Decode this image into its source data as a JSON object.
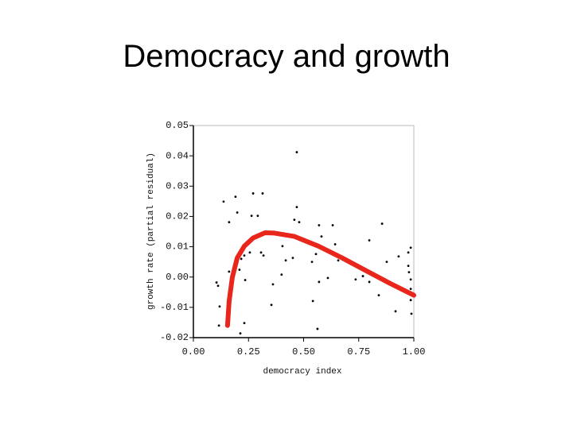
{
  "chart_data": {
    "type": "scatter",
    "title": "Democracy and growth",
    "xlabel": "democracy index",
    "ylabel": "growth rate (partial residual)",
    "xlim": [
      0,
      1
    ],
    "ylim": [
      -0.02,
      0.05
    ],
    "xticks": [
      {
        "value": 0,
        "label": "0.00"
      },
      0.25,
      {
        "value": 0.5,
        "label": "0.50"
      },
      0.75,
      {
        "value": 1,
        "label": "1.00"
      }
    ],
    "yticks": [
      -0.02,
      -0.01,
      {
        "value": 0,
        "label": "0.00"
      },
      0.01,
      0.02,
      0.03,
      0.04,
      0.05
    ],
    "color": "#000000",
    "x": [
      0.469,
      0.137,
      0.191,
      0.271,
      0.314,
      0.199,
      0.162,
      0.264,
      0.292,
      0.469,
      0.458,
      0.48,
      0.57,
      0.632,
      0.856,
      0.581,
      0.643,
      0.798,
      0.404,
      0.256,
      0.307,
      0.318,
      0.231,
      0.217,
      0.209,
      0.419,
      0.451,
      0.538,
      0.556,
      0.657,
      0.736,
      0.769,
      0.877,
      0.931,
      0.975,
      0.986,
      0.975,
      0.978,
      0.986,
      0.986,
      0.986,
      0.989,
      0.917,
      0.841,
      0.798,
      0.61,
      0.57,
      0.4,
      0.361,
      0.235,
      0.105,
      0.112,
      0.119,
      0.116,
      0.231,
      0.213,
      0.354,
      0.542,
      0.563,
      0.162
    ],
    "y": [
      0.0412,
      0.0249,
      0.0265,
      0.0276,
      0.0276,
      0.0213,
      0.0181,
      0.0202,
      0.0202,
      0.0231,
      0.0189,
      0.0181,
      0.0171,
      0.0171,
      0.0176,
      0.0134,
      0.0108,
      0.0121,
      0.0102,
      0.0081,
      0.0081,
      0.0071,
      0.0071,
      0.006,
      0.0024,
      0.0055,
      0.0063,
      0.005,
      0.0076,
      0.0055,
      -0.0008,
      0.0003,
      0.005,
      0.0068,
      0.0081,
      0.0097,
      0.0037,
      0.0016,
      -0.0008,
      -0.0039,
      -0.0076,
      -0.0121,
      -0.0113,
      -0.006,
      -0.0016,
      -0.0003,
      -0.0016,
      0.0008,
      -0.0024,
      -0.001,
      -0.0018,
      -0.0029,
      -0.0097,
      -0.016,
      -0.0152,
      -0.0186,
      -0.0092,
      -0.0079,
      -0.0171,
      0.0018
    ],
    "curve": {
      "color": "#e8261c",
      "x": [
        0.155,
        0.162,
        0.177,
        0.199,
        0.231,
        0.271,
        0.325,
        0.368,
        0.458,
        0.567,
        0.675,
        0.783,
        0.892,
        1.0
      ],
      "y": [
        -0.016,
        -0.008,
        0.0,
        0.0063,
        0.0102,
        0.0129,
        0.0146,
        0.0145,
        0.0134,
        0.0102,
        0.0063,
        0.0021,
        -0.0021,
        -0.006
      ]
    }
  }
}
